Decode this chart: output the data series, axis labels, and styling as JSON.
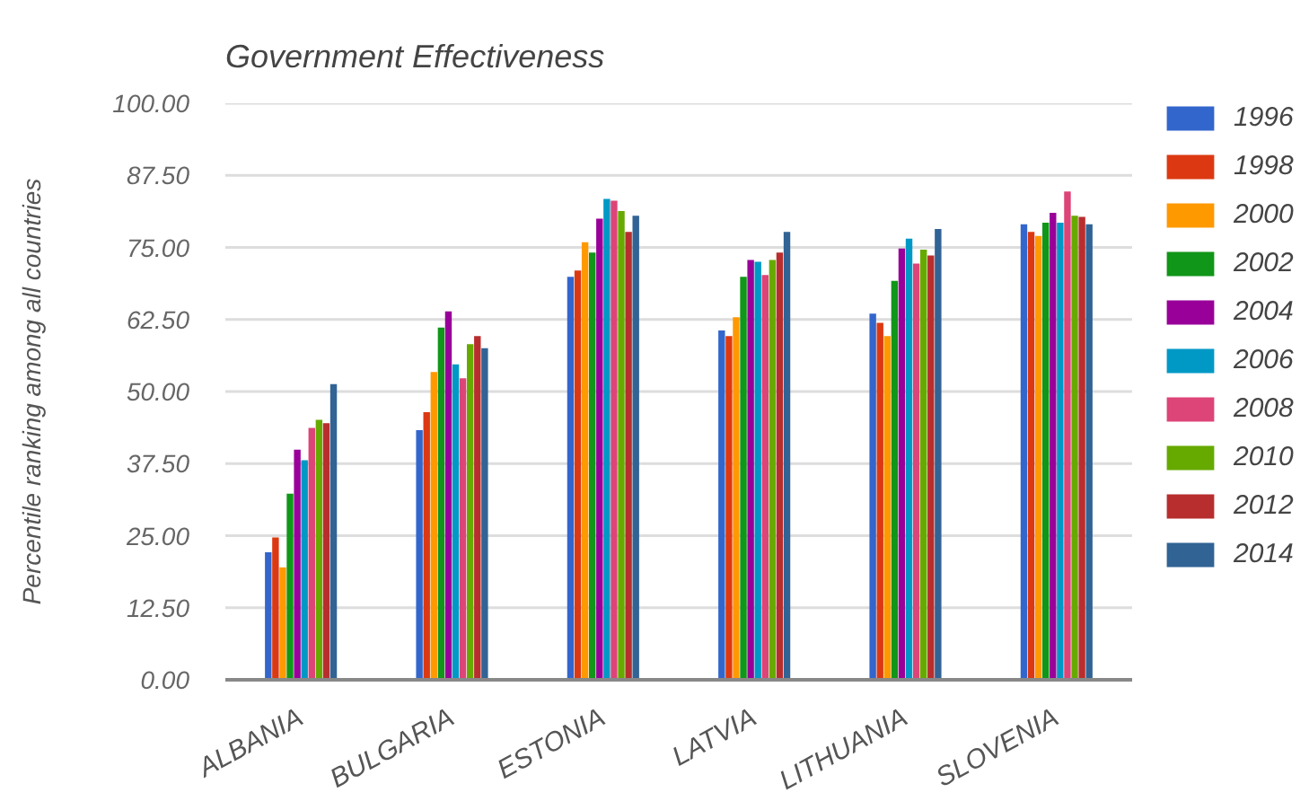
{
  "chart_data": {
    "type": "bar",
    "title": "Government Effectiveness",
    "ylabel": "Percentile ranking among all countries",
    "categories": [
      "ALBANIA",
      "BULGARIA",
      "ESTONIA",
      "LATVIA",
      "LITHUANIA",
      "SLOVENIA"
    ],
    "series": [
      {
        "name": "1996",
        "color": "#3366cc",
        "values": [
          22.1,
          43.3,
          69.9,
          60.6,
          63.5,
          79.0
        ]
      },
      {
        "name": "1998",
        "color": "#dc3912",
        "values": [
          24.7,
          46.4,
          71.0,
          59.6,
          61.9,
          77.7
        ]
      },
      {
        "name": "2000",
        "color": "#ff9900",
        "values": [
          19.5,
          53.4,
          75.9,
          62.9,
          59.6,
          77.0
        ]
      },
      {
        "name": "2002",
        "color": "#109618",
        "values": [
          32.3,
          61.1,
          74.1,
          69.9,
          69.2,
          79.3
        ]
      },
      {
        "name": "2004",
        "color": "#990099",
        "values": [
          39.9,
          63.9,
          80.0,
          72.8,
          74.8,
          81.0
        ]
      },
      {
        "name": "2006",
        "color": "#0099c6",
        "values": [
          38.1,
          54.7,
          83.4,
          72.5,
          76.5,
          79.3
        ]
      },
      {
        "name": "2008",
        "color": "#dd4477",
        "values": [
          43.7,
          52.3,
          83.1,
          70.2,
          72.2,
          84.7
        ]
      },
      {
        "name": "2010",
        "color": "#66aa00",
        "values": [
          45.1,
          58.2,
          81.3,
          72.8,
          74.6,
          80.5
        ]
      },
      {
        "name": "2012",
        "color": "#b82e2e",
        "values": [
          44.5,
          59.6,
          77.7,
          74.1,
          73.6,
          80.3
        ]
      },
      {
        "name": "2014",
        "color": "#316395",
        "values": [
          51.3,
          57.5,
          80.5,
          77.7,
          78.2,
          79.0
        ]
      }
    ],
    "ylim": [
      0,
      100
    ],
    "yticks": [
      {
        "value": 0,
        "label": "0.00"
      },
      {
        "value": 12.5,
        "label": "12.50"
      },
      {
        "value": 25,
        "label": "25.00"
      },
      {
        "value": 37.5,
        "label": "37.50"
      },
      {
        "value": 50,
        "label": "50.00"
      },
      {
        "value": 62.5,
        "label": "62.50"
      },
      {
        "value": 75,
        "label": "75.00"
      },
      {
        "value": 87.5,
        "label": "87.50"
      },
      {
        "value": 100,
        "label": "100.00"
      }
    ],
    "grid": "y",
    "legend": "right"
  }
}
